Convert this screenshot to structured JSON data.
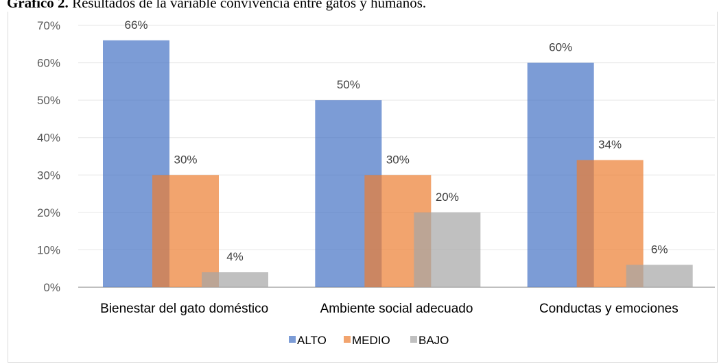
{
  "caption": {
    "prefix": "Gráfico 2.",
    "text": "Resultados de la variable convivencia entre gatos y humanos."
  },
  "colors": {
    "ALTO": "#4472c4",
    "MEDIO": "#ed7d31",
    "BAJO": "#a5a5a5",
    "grid": "#e6e6e6",
    "axis": "#bfbfbf"
  },
  "chart_data": {
    "type": "bar",
    "categories": [
      "Bienestar del gato doméstico",
      "Ambiente social adecuado",
      "Conductas y emociones"
    ],
    "series": [
      {
        "name": "ALTO",
        "values": [
          66,
          50,
          60
        ],
        "labels": [
          "66%",
          "50%",
          "60%"
        ]
      },
      {
        "name": "MEDIO",
        "values": [
          30,
          30,
          34
        ],
        "labels": [
          "30%",
          "30%",
          "34%"
        ]
      },
      {
        "name": "BAJO",
        "values": [
          4,
          20,
          6
        ],
        "labels": [
          "4%",
          "20%",
          "6%"
        ]
      }
    ],
    "ylim": [
      0,
      70
    ],
    "yticks": [
      0,
      10,
      20,
      30,
      40,
      50,
      60,
      70
    ],
    "ytick_labels": [
      "0%",
      "10%",
      "20%",
      "30%",
      "40%",
      "50%",
      "60%",
      "70%"
    ],
    "grid": true,
    "legend": "bottom"
  }
}
